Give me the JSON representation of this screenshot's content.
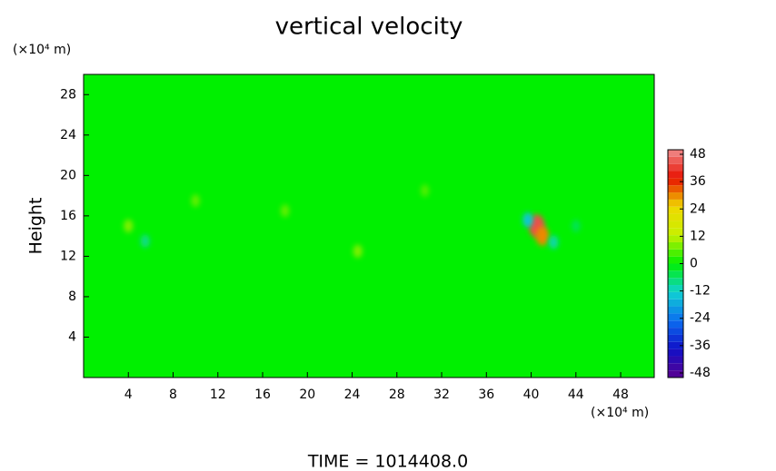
{
  "chart_data": {
    "type": "contour",
    "title": "vertical velocity",
    "ylabel": "Height",
    "y_unit": "(×10⁴ m)",
    "x_unit": "(×10⁴ m)",
    "footer": "TIME = 1014408.0",
    "xlim": [
      0,
      51
    ],
    "ylim": [
      0,
      30
    ],
    "xticks": [
      4,
      8,
      12,
      16,
      20,
      24,
      28,
      32,
      36,
      40,
      44,
      48
    ],
    "yticks": [
      4,
      8,
      12,
      16,
      20,
      24,
      28
    ],
    "clim": [
      -50,
      50
    ],
    "cticks": [
      48,
      36,
      24,
      12,
      0,
      -12,
      -24,
      -36,
      -48
    ],
    "colormap": [
      "#5a0090",
      "#1010c8",
      "#0a6ef0",
      "#10d2d2",
      "#00f000",
      "#c8f000",
      "#f0d800",
      "#e81000",
      "#f08c8c"
    ],
    "x": [
      40.5,
      41.0,
      39.7,
      42.0,
      4.0,
      5.5,
      10.0,
      18.0,
      24.5,
      30.5,
      44.0
    ],
    "y": [
      15.0,
      14.0,
      15.6,
      13.4,
      15.0,
      13.5,
      17.5,
      16.5,
      12.5,
      18.5,
      15.0
    ],
    "values": [
      44,
      30,
      -14,
      -10,
      8,
      -8,
      6,
      6,
      8,
      5,
      -5
    ]
  }
}
